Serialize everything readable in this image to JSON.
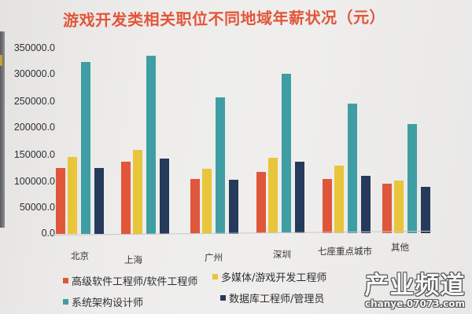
{
  "chart_data": {
    "type": "bar",
    "title": "游戏开发类相关职位不同地域年薪状况（元）",
    "xlabel": "",
    "ylabel": "",
    "ylim": [
      0,
      350000
    ],
    "yticks": [
      "0.0",
      "50000.0",
      "100000.0",
      "150000.0",
      "200000.0",
      "250000.0",
      "300000.0",
      "350000.0"
    ],
    "grid": false,
    "legend_position": "bottom",
    "categories": [
      "北京",
      "上海",
      "广州",
      "深圳",
      "七座重点城市",
      "其他"
    ],
    "series": [
      {
        "name": "高级软件工程师/软件工程师",
        "color": "#e0563a",
        "values": [
          124000,
          136000,
          103000,
          116000,
          103000,
          93000
        ]
      },
      {
        "name": "多媒体/游戏开发工程师",
        "color": "#e8c53a",
        "values": [
          145000,
          158000,
          122000,
          143000,
          127000,
          99000
        ]
      },
      {
        "name": "系统架构设计师",
        "color": "#3f9ea3",
        "values": [
          325000,
          337000,
          258000,
          301000,
          245000,
          206000
        ]
      },
      {
        "name": "数据库工程师/管理员",
        "color": "#263a5c",
        "values": [
          124000,
          142000,
          102000,
          136000,
          108000,
          87000
        ]
      }
    ]
  },
  "watermark": {
    "main": "产业频道",
    "sub": "chanye.07073.com"
  }
}
